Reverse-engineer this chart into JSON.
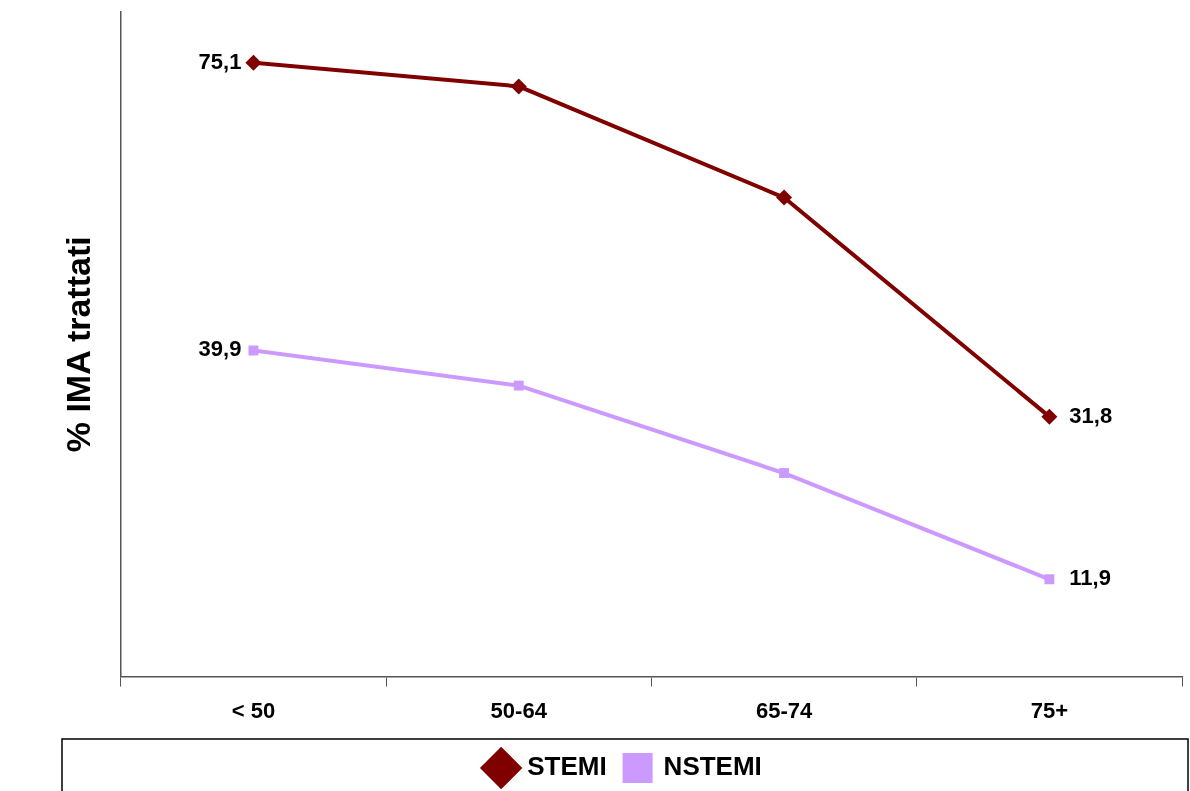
{
  "chart_data": {
    "type": "line",
    "ylabel": "% IMA trattati",
    "categories": [
      "< 50",
      "50-64",
      "65-74",
      "75+"
    ],
    "series": [
      {
        "name": "STEMI",
        "color": "#800000",
        "marker": "diamond",
        "values": [
          75.1,
          72.2,
          58.6,
          31.8
        ],
        "value_labels": [
          "75,1",
          null,
          null,
          "31,8"
        ]
      },
      {
        "name": "NSTEMI",
        "color": "#cc99ff",
        "marker": "square",
        "values": [
          39.9,
          35.6,
          24.9,
          11.9
        ],
        "value_labels": [
          "39,9",
          null,
          null,
          "11,9"
        ]
      }
    ],
    "ylim": [
      0,
      81.3
    ],
    "tick_labels": "x",
    "grid": false,
    "legend": "bottom",
    "line_style": "solid"
  }
}
